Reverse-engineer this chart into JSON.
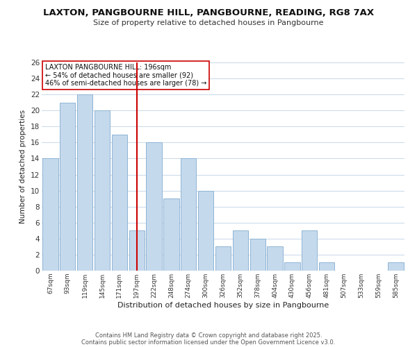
{
  "title": "LAXTON, PANGBOURNE HILL, PANGBOURNE, READING, RG8 7AX",
  "subtitle": "Size of property relative to detached houses in Pangbourne",
  "xlabel": "Distribution of detached houses by size in Pangbourne",
  "ylabel": "Number of detached properties",
  "bar_color": "#c5d9ed",
  "bar_edgecolor": "#8eb4d4",
  "background_color": "#ffffff",
  "grid_color": "#c8d8e8",
  "categories": [
    "67sqm",
    "93sqm",
    "119sqm",
    "145sqm",
    "171sqm",
    "197sqm",
    "222sqm",
    "248sqm",
    "274sqm",
    "300sqm",
    "326sqm",
    "352sqm",
    "378sqm",
    "404sqm",
    "430sqm",
    "456sqm",
    "481sqm",
    "507sqm",
    "533sqm",
    "559sqm",
    "585sqm"
  ],
  "values": [
    14,
    21,
    22,
    20,
    17,
    5,
    16,
    9,
    14,
    10,
    3,
    5,
    4,
    3,
    1,
    5,
    1,
    0,
    0,
    0,
    1
  ],
  "vline_x": 5,
  "vline_color": "#cc0000",
  "annotation_title": "LAXTON PANGBOURNE HILL: 196sqm",
  "annotation_line1": "← 54% of detached houses are smaller (92)",
  "annotation_line2": "46% of semi-detached houses are larger (78) →",
  "annotation_box_edgecolor": "#cc0000",
  "ylim": [
    0,
    26
  ],
  "yticks": [
    0,
    2,
    4,
    6,
    8,
    10,
    12,
    14,
    16,
    18,
    20,
    22,
    24,
    26
  ],
  "footnote1": "Contains HM Land Registry data © Crown copyright and database right 2025.",
  "footnote2": "Contains public sector information licensed under the Open Government Licence v3.0."
}
